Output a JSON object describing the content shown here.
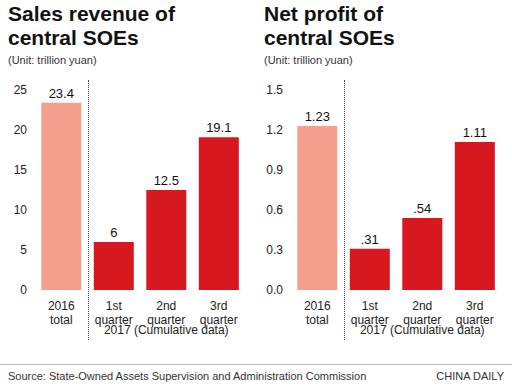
{
  "chart_data": [
    {
      "type": "bar",
      "title": "Sales revenue of central SOEs",
      "subtitle": "(Unit: trillion yuan)",
      "categories": [
        "2016 total",
        "1st quarter",
        "2nd quarter",
        "3rd quarter"
      ],
      "values": [
        23.4,
        6,
        12.5,
        19.1
      ],
      "colors": [
        "#f5a08c",
        "#d8181f",
        "#d8181f",
        "#d8181f"
      ],
      "ylim": [
        0,
        25
      ],
      "yticks": [
        0,
        5,
        10,
        15,
        20,
        25
      ],
      "grid": false,
      "data_labels": true,
      "annotations": [
        "2017 (Cumulative data)"
      ]
    },
    {
      "type": "bar",
      "title": "Net profit of central SOEs",
      "subtitle": "(Unit: trillion yuan)",
      "categories": [
        "2016 total",
        "1st quarter",
        "2nd quarter",
        "3rd quarter"
      ],
      "values": [
        1.23,
        0.31,
        0.54,
        1.11
      ],
      "value_labels": [
        "1.23",
        ".31",
        ".54",
        "1.11"
      ],
      "colors": [
        "#f5a08c",
        "#d8181f",
        "#d8181f",
        "#d8181f"
      ],
      "ylim": [
        0,
        1.5
      ],
      "yticks": [
        {
          "value": 0,
          "label": "0.0"
        },
        0.3,
        0.6,
        0.9,
        1.2,
        1.5
      ],
      "grid": false,
      "data_labels": true,
      "annotations": [
        "2017 (Cumulative data)"
      ]
    }
  ],
  "source": "Source: State-Owned Assets Supervision and Administration Commission",
  "credit": "CHINA DAILY"
}
